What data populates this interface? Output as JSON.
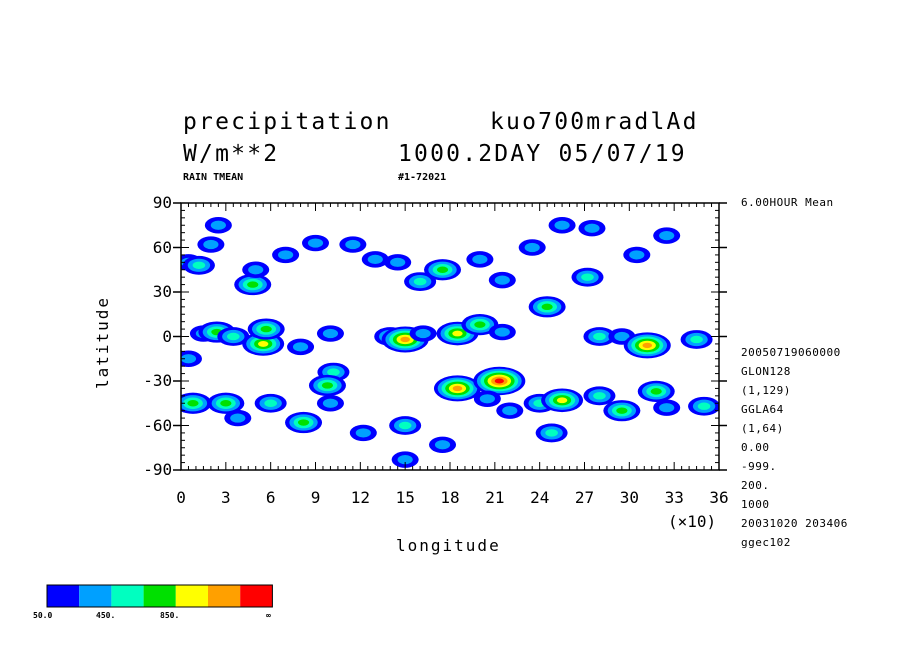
{
  "header": {
    "variable": "precipitation",
    "experiment": "kuo700mradlAd",
    "units": "W/m**2",
    "level_time": "1000.2DAY 05/07/19",
    "sub_left": "RAIN TMEAN",
    "sub_mid": "#1-72021"
  },
  "right_info": {
    "mean_label": "6.00HOUR Mean",
    "lines": [
      "20050719060000",
      "GLON128",
      "(1,129)",
      "GGLA64",
      "(1,64)",
      "0.00",
      "-999.",
      "200.",
      "1000",
      "20031020 203406",
      "ggec102"
    ]
  },
  "x_scale_note": "(×10)",
  "colors": {
    "bins": [
      "#0000ff",
      "#00a0ff",
      "#00ffc0",
      "#00e000",
      "#ffff00",
      "#ffa000",
      "#ff0000"
    ],
    "frame": "#000000"
  },
  "colorbar": {
    "labels": [
      "50.0",
      "450.",
      "850.",
      "∞"
    ]
  },
  "chart_data": {
    "type": "heatmap",
    "title": "precipitation",
    "xlabel": "longitude",
    "ylabel": "latitude",
    "xlim": [
      0,
      360
    ],
    "ylim": [
      -90,
      90
    ],
    "x_ticks": [
      0,
      3,
      6,
      9,
      12,
      15,
      18,
      21,
      24,
      27,
      30,
      33,
      36
    ],
    "x_tick_multiplier": 10,
    "y_ticks": [
      90,
      60,
      30,
      0,
      -30,
      -60,
      -90
    ],
    "contour_levels": [
      50,
      250,
      450,
      650,
      850,
      1050,
      1250
    ],
    "cells": [
      {
        "lon": 5,
        "lat": 50,
        "level": 1
      },
      {
        "lon": 12,
        "lat": 48,
        "level": 2
      },
      {
        "lon": 20,
        "lat": 62,
        "level": 1
      },
      {
        "lon": 25,
        "lat": 75,
        "level": 1
      },
      {
        "lon": 48,
        "lat": 35,
        "level": 3
      },
      {
        "lon": 50,
        "lat": 45,
        "level": 1
      },
      {
        "lon": 70,
        "lat": 55,
        "level": 1
      },
      {
        "lon": 90,
        "lat": 63,
        "level": 1
      },
      {
        "lon": 115,
        "lat": 62,
        "level": 1
      },
      {
        "lon": 130,
        "lat": 52,
        "level": 1
      },
      {
        "lon": 145,
        "lat": 50,
        "level": 1
      },
      {
        "lon": 160,
        "lat": 37,
        "level": 2
      },
      {
        "lon": 175,
        "lat": 45,
        "level": 3
      },
      {
        "lon": 200,
        "lat": 52,
        "level": 1
      },
      {
        "lon": 215,
        "lat": 38,
        "level": 1
      },
      {
        "lon": 235,
        "lat": 60,
        "level": 1
      },
      {
        "lon": 245,
        "lat": 20,
        "level": 3
      },
      {
        "lon": 255,
        "lat": 75,
        "level": 1
      },
      {
        "lon": 275,
        "lat": 73,
        "level": 1
      },
      {
        "lon": 272,
        "lat": 40,
        "level": 2
      },
      {
        "lon": 305,
        "lat": 55,
        "level": 1
      },
      {
        "lon": 325,
        "lat": 68,
        "level": 1
      },
      {
        "lon": 15,
        "lat": 2,
        "level": 1
      },
      {
        "lon": 24,
        "lat": 3,
        "level": 3
      },
      {
        "lon": 35,
        "lat": 0,
        "level": 2
      },
      {
        "lon": 55,
        "lat": -5,
        "level": 4
      },
      {
        "lon": 57,
        "lat": 5,
        "level": 3
      },
      {
        "lon": 80,
        "lat": -7,
        "level": 1
      },
      {
        "lon": 100,
        "lat": 2,
        "level": 1
      },
      {
        "lon": 140,
        "lat": 0,
        "level": 2
      },
      {
        "lon": 150,
        "lat": -2,
        "level": 5
      },
      {
        "lon": 162,
        "lat": 2,
        "level": 1
      },
      {
        "lon": 185,
        "lat": 2,
        "level": 4
      },
      {
        "lon": 200,
        "lat": 8,
        "level": 3
      },
      {
        "lon": 215,
        "lat": 3,
        "level": 1
      },
      {
        "lon": 280,
        "lat": 0,
        "level": 2
      },
      {
        "lon": 295,
        "lat": 0,
        "level": 1
      },
      {
        "lon": 312,
        "lat": -6,
        "level": 5
      },
      {
        "lon": 345,
        "lat": -2,
        "level": 2
      },
      {
        "lon": 5,
        "lat": -15,
        "level": 1
      },
      {
        "lon": 102,
        "lat": -24,
        "level": 2
      },
      {
        "lon": 98,
        "lat": -33,
        "level": 3
      },
      {
        "lon": 185,
        "lat": -35,
        "level": 5
      },
      {
        "lon": 213,
        "lat": -30,
        "level": 6
      },
      {
        "lon": 8,
        "lat": -45,
        "level": 3
      },
      {
        "lon": 30,
        "lat": -45,
        "level": 3
      },
      {
        "lon": 38,
        "lat": -55,
        "level": 1
      },
      {
        "lon": 60,
        "lat": -45,
        "level": 2
      },
      {
        "lon": 82,
        "lat": -58,
        "level": 3
      },
      {
        "lon": 100,
        "lat": -45,
        "level": 1
      },
      {
        "lon": 122,
        "lat": -65,
        "level": 1
      },
      {
        "lon": 150,
        "lat": -60,
        "level": 2
      },
      {
        "lon": 175,
        "lat": -73,
        "level": 1
      },
      {
        "lon": 205,
        "lat": -42,
        "level": 1
      },
      {
        "lon": 220,
        "lat": -50,
        "level": 1
      },
      {
        "lon": 240,
        "lat": -45,
        "level": 2
      },
      {
        "lon": 255,
        "lat": -43,
        "level": 4
      },
      {
        "lon": 248,
        "lat": -65,
        "level": 2
      },
      {
        "lon": 280,
        "lat": -40,
        "level": 2
      },
      {
        "lon": 295,
        "lat": -50,
        "level": 3
      },
      {
        "lon": 318,
        "lat": -37,
        "level": 3
      },
      {
        "lon": 325,
        "lat": -48,
        "level": 1
      },
      {
        "lon": 350,
        "lat": -47,
        "level": 2
      },
      {
        "lon": 150,
        "lat": -83,
        "level": 1
      }
    ]
  }
}
